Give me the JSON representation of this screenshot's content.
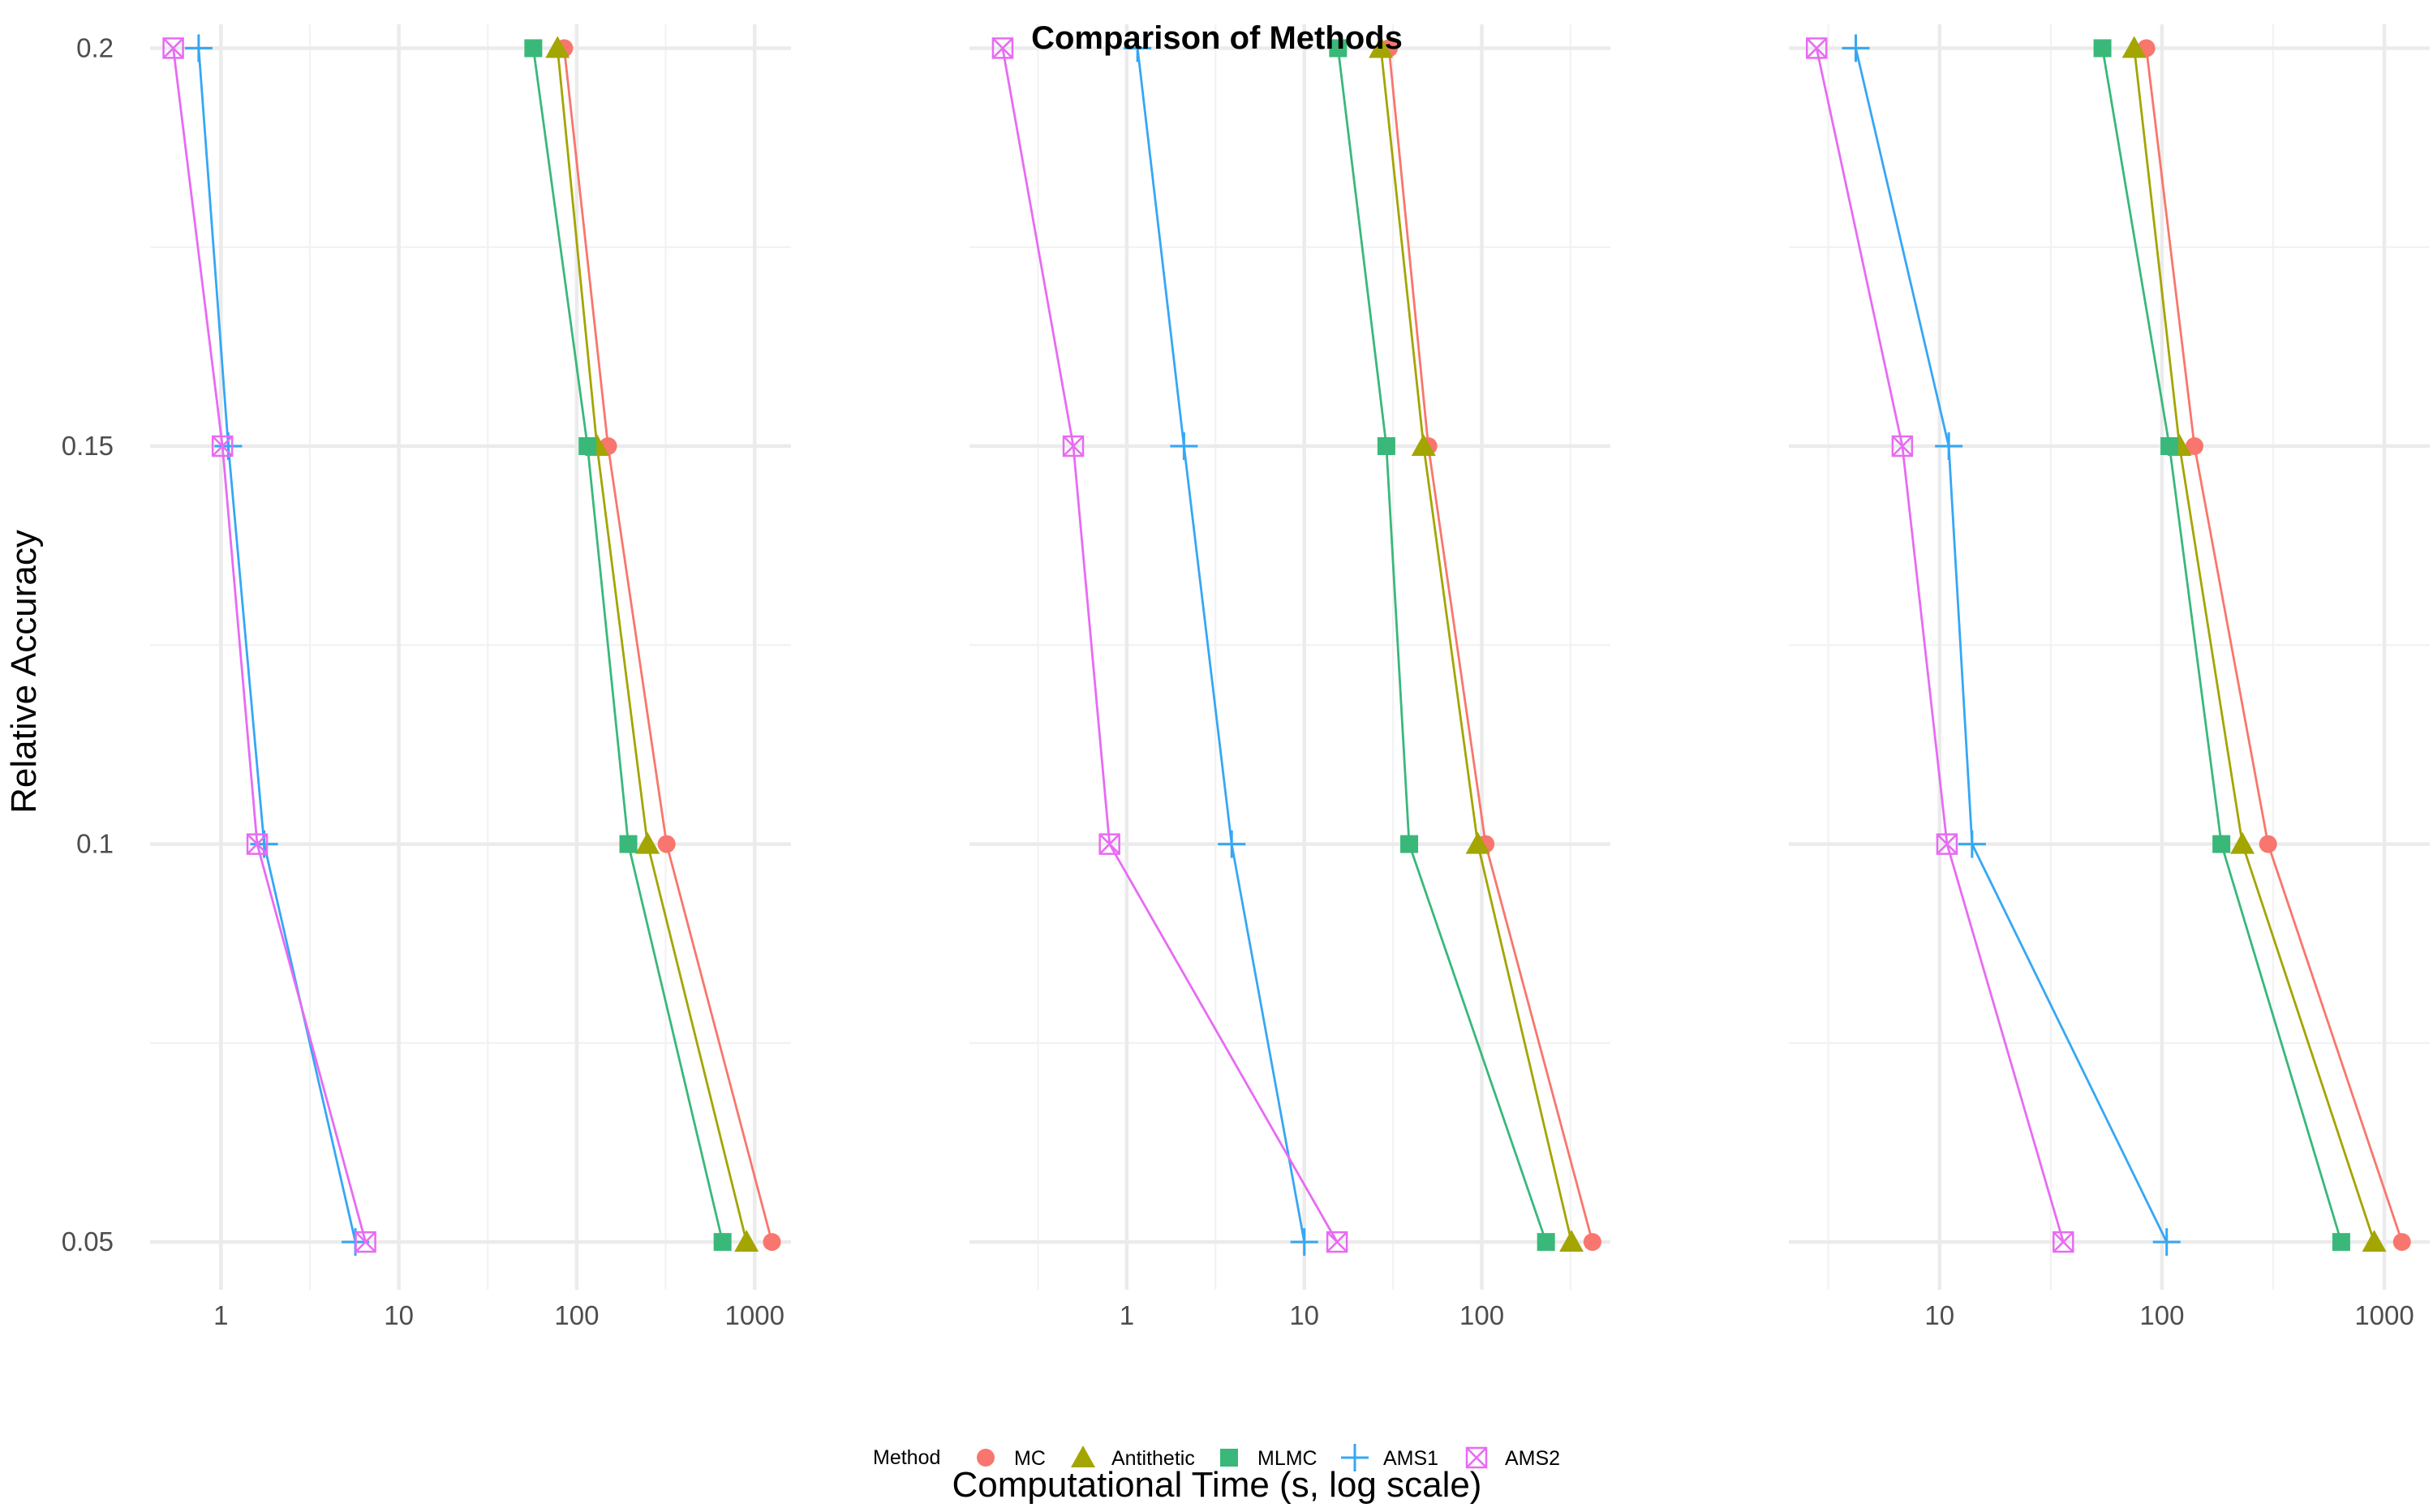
{
  "chart_data": {
    "type": "line",
    "title": "Comparison of Methods",
    "xlabel": "Computational Time (s, log scale)",
    "ylabel": "Relative Accuracy",
    "x_scale": "log10",
    "y_ticks": [
      0.05,
      0.1,
      0.15,
      0.2
    ],
    "y_tick_labels": [
      "0.05",
      "0.1",
      "0.15",
      "0.2"
    ],
    "ylim": [
      0.044,
      0.203
    ],
    "legend": {
      "title": "Method",
      "position": "bottom"
    },
    "series_styles": [
      {
        "name": "MC",
        "color": "#F8766D",
        "shape": "circle"
      },
      {
        "name": "Antithetic",
        "color": "#A3A500",
        "shape": "triangle"
      },
      {
        "name": "MLMC",
        "color": "#39B87A",
        "shape": "square"
      },
      {
        "name": "AMS1",
        "color": "#35A7F5",
        "shape": "plus"
      },
      {
        "name": "AMS2",
        "color": "#E76BF3",
        "shape": "square-x"
      }
    ],
    "panels": [
      {
        "xlim": [
          0.4,
          1600
        ],
        "x_ticks": [
          1,
          10,
          100,
          1000
        ],
        "x_tick_labels": [
          "1",
          "10",
          "100",
          "1000"
        ],
        "series": [
          {
            "name": "MC",
            "points": [
              [
                85,
                0.2
              ],
              [
                150,
                0.15
              ],
              [
                320,
                0.1
              ],
              [
                1250,
                0.05
              ]
            ]
          },
          {
            "name": "Antithetic",
            "points": [
              [
                78,
                0.2
              ],
              [
                130,
                0.15
              ],
              [
                250,
                0.1
              ],
              [
                900,
                0.05
              ]
            ]
          },
          {
            "name": "MLMC",
            "points": [
              [
                57,
                0.2
              ],
              [
                115,
                0.15
              ],
              [
                195,
                0.1
              ],
              [
                660,
                0.05
              ]
            ]
          },
          {
            "name": "AMS1",
            "points": [
              [
                0.75,
                0.2
              ],
              [
                1.1,
                0.15
              ],
              [
                1.75,
                0.1
              ],
              [
                5.7,
                0.05
              ]
            ]
          },
          {
            "name": "AMS2",
            "points": [
              [
                0.54,
                0.2
              ],
              [
                1.02,
                0.15
              ],
              [
                1.6,
                0.1
              ],
              [
                6.5,
                0.05
              ]
            ]
          }
        ]
      },
      {
        "xlim": [
          0.13,
          530
        ],
        "x_ticks": [
          1,
          10,
          100
        ],
        "x_tick_labels": [
          "1",
          "10",
          "100"
        ],
        "series": [
          {
            "name": "MC",
            "points": [
              [
                30,
                0.2
              ],
              [
                50,
                0.15
              ],
              [
                105,
                0.1
              ],
              [
                420,
                0.05
              ]
            ]
          },
          {
            "name": "Antithetic",
            "points": [
              [
                27,
                0.2
              ],
              [
                47,
                0.15
              ],
              [
                95,
                0.1
              ],
              [
                320,
                0.05
              ]
            ]
          },
          {
            "name": "MLMC",
            "points": [
              [
                15.5,
                0.2
              ],
              [
                29,
                0.15
              ],
              [
                39,
                0.1
              ],
              [
                230,
                0.05
              ]
            ]
          },
          {
            "name": "AMS1",
            "points": [
              [
                1.15,
                0.2
              ],
              [
                2.1,
                0.15
              ],
              [
                3.9,
                0.1
              ],
              [
                10,
                0.05
              ]
            ]
          },
          {
            "name": "AMS2",
            "points": [
              [
                0.2,
                0.2
              ],
              [
                0.5,
                0.15
              ],
              [
                0.8,
                0.1
              ],
              [
                15.3,
                0.05
              ]
            ]
          }
        ]
      },
      {
        "xlim": [
          2.1,
          1600
        ],
        "x_ticks": [
          10,
          100,
          1000
        ],
        "x_tick_labels": [
          "10",
          "100",
          "1000"
        ],
        "series": [
          {
            "name": "MC",
            "points": [
              [
                85,
                0.2
              ],
              [
                140,
                0.15
              ],
              [
                300,
                0.1
              ],
              [
                1200,
                0.05
              ]
            ]
          },
          {
            "name": "Antithetic",
            "points": [
              [
                75,
                0.2
              ],
              [
                120,
                0.15
              ],
              [
                230,
                0.1
              ],
              [
                900,
                0.05
              ]
            ]
          },
          {
            "name": "MLMC",
            "points": [
              [
                54,
                0.2
              ],
              [
                108,
                0.15
              ],
              [
                185,
                0.1
              ],
              [
                640,
                0.05
              ]
            ]
          },
          {
            "name": "AMS1",
            "points": [
              [
                4.2,
                0.2
              ],
              [
                11,
                0.15
              ],
              [
                14,
                0.1
              ],
              [
                105,
                0.05
              ]
            ]
          },
          {
            "name": "AMS2",
            "points": [
              [
                2.8,
                0.2
              ],
              [
                6.8,
                0.15
              ],
              [
                10.8,
                0.1
              ],
              [
                36,
                0.05
              ]
            ]
          }
        ]
      }
    ]
  }
}
